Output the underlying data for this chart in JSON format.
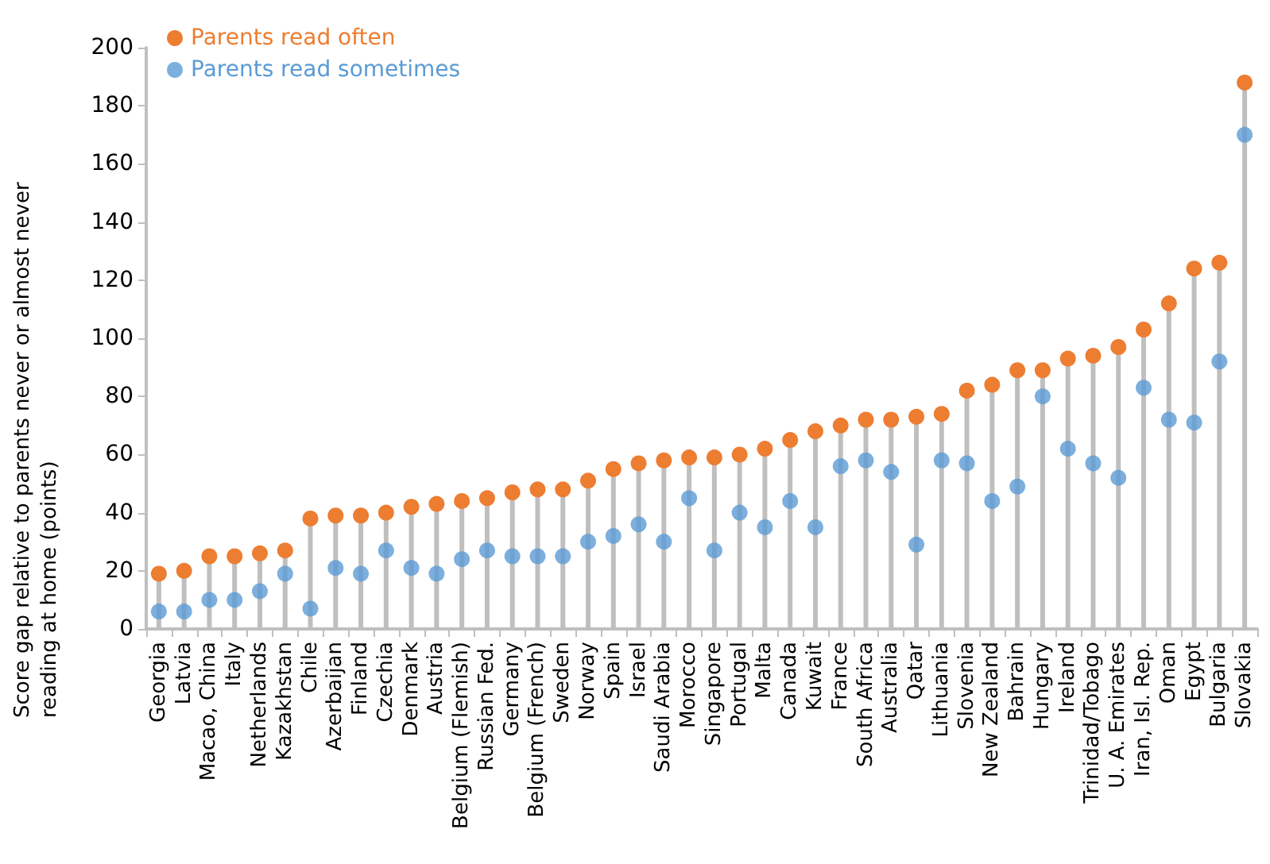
{
  "chart_data": {
    "type": "lollipop",
    "ylabel": "Score gap relative to parents never or almost never reading at home (points)",
    "categories": [
      "Georgia",
      "Latvia",
      "Macao, China",
      "Italy",
      "Netherlands",
      "Kazakhstan",
      "Chile",
      "Azerbaijan",
      "Finland",
      "Czechia",
      "Denmark",
      "Austria",
      "Belgium (Flemish)",
      "Russian Fed.",
      "Germany",
      "Belgium (French)",
      "Sweden",
      "Norway",
      "Spain",
      "Israel",
      "Saudi Arabia",
      "Morocco",
      "Singapore",
      "Portugal",
      "Malta",
      "Canada",
      "Kuwait",
      "France",
      "South Africa",
      "Australia",
      "Qatar",
      "Lithuania",
      "Slovenia",
      "New Zealand",
      "Bahrain",
      "Hungary",
      "Ireland",
      "Trinidad/Tobago",
      "U. A. Emirates",
      "Iran, Isl. Rep.",
      "Oman",
      "Egypt",
      "Bulgaria",
      "Slovakia"
    ],
    "series": [
      {
        "name": "Parents read often",
        "color": "#ed7d31",
        "values": [
          19,
          20,
          25,
          25,
          26,
          27,
          38,
          39,
          39,
          40,
          42,
          43,
          44,
          45,
          47,
          48,
          48,
          51,
          55,
          57,
          58,
          59,
          59,
          60,
          62,
          65,
          68,
          70,
          72,
          72,
          73,
          74,
          82,
          84,
          89,
          89,
          93,
          94,
          97,
          103,
          112,
          124,
          126,
          188
        ]
      },
      {
        "name": "Parents read sometimes",
        "type": "scatter",
        "color": "#5b9bd5",
        "values": [
          6,
          6,
          10,
          10,
          13,
          19,
          7,
          21,
          19,
          27,
          21,
          19,
          24,
          27,
          25,
          25,
          25,
          30,
          32,
          36,
          30,
          45,
          27,
          40,
          35,
          44,
          35,
          56,
          58,
          54,
          29,
          58,
          57,
          44,
          49,
          80,
          62,
          57,
          52,
          83,
          72,
          71,
          92,
          170
        ]
      }
    ],
    "ylim": [
      0,
      200
    ],
    "yticks": [
      0,
      20,
      40,
      60,
      80,
      100,
      120,
      140,
      160,
      180,
      200
    ],
    "legend": "top left",
    "marker": "circle"
  }
}
